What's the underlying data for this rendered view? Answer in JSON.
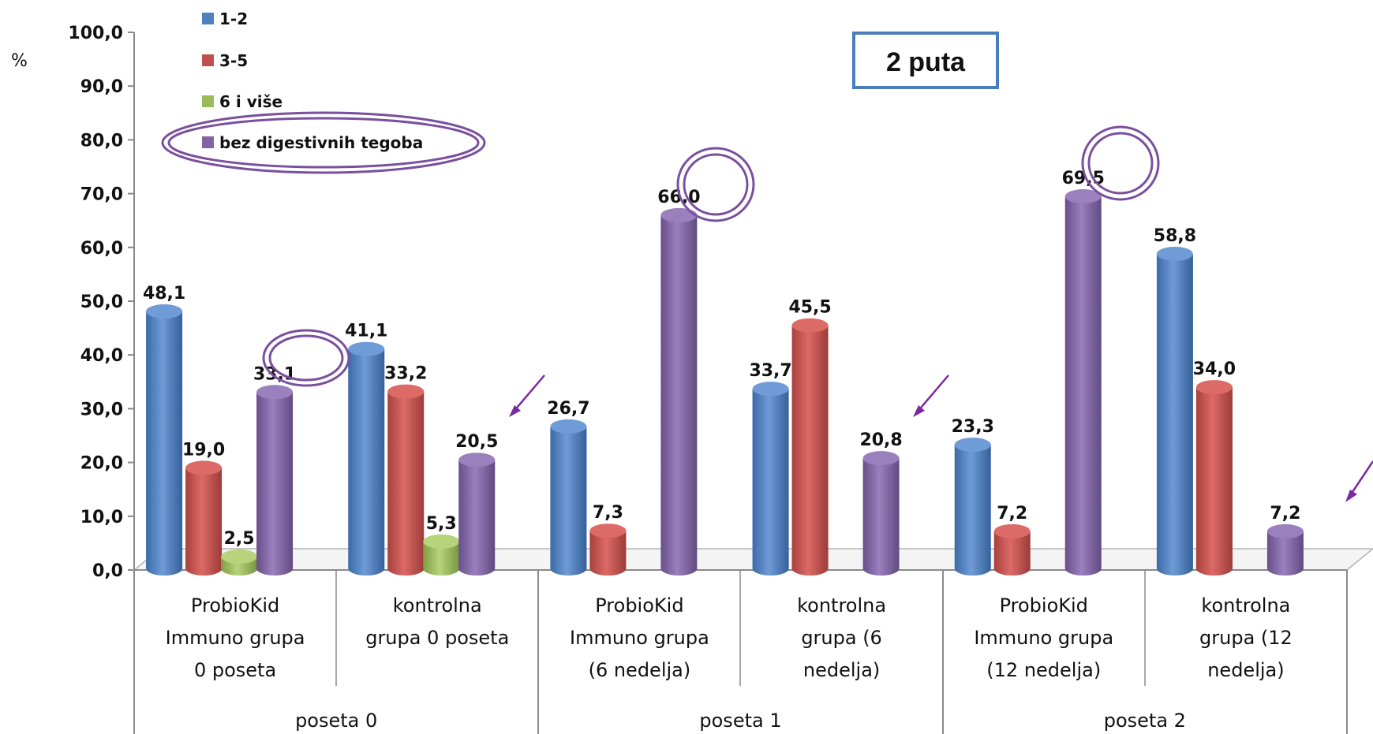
{
  "chart_data": {
    "type": "bar",
    "ylabel": "%",
    "ylim": [
      0,
      100
    ],
    "yticks": [
      "0,0",
      "10,0",
      "20,0",
      "30,0",
      "40,0",
      "50,0",
      "60,0",
      "70,0",
      "80,0",
      "90,0",
      "100,0"
    ],
    "annotation": "2 puta",
    "categories": [
      [
        "ProbioKid",
        "Immuno grupa",
        "0 poseta"
      ],
      [
        "kontrolna",
        "grupa 0 poseta"
      ],
      [
        "ProbioKid",
        "Immuno grupa",
        "(6 nedelja)"
      ],
      [
        "kontrolna",
        "grupa (6",
        "nedelja)"
      ],
      [
        "ProbioKid",
        "Immuno grupa",
        "(12 nedelja)"
      ],
      [
        "kontrolna",
        "grupa (12",
        "nedelja)"
      ]
    ],
    "groups": [
      "poseta 0",
      "poseta 1",
      "poseta 2"
    ],
    "series": [
      {
        "name": "1-2",
        "color": "#4F81BD",
        "values": [
          48.1,
          41.1,
          26.7,
          33.7,
          23.3,
          58.8
        ],
        "labels": [
          "48,1",
          "41,1",
          "26,7",
          "33,7",
          "23,3",
          "58,8"
        ]
      },
      {
        "name": "3-5",
        "color": "#C0504D",
        "values": [
          19.0,
          33.2,
          7.3,
          45.5,
          7.2,
          34.0
        ],
        "labels": [
          "19,0",
          "33,2",
          "7,3",
          "45,5",
          "7,2",
          "34,0"
        ]
      },
      {
        "name": "6 i više",
        "color": "#9BBB59",
        "values": [
          2.5,
          5.3,
          null,
          null,
          null,
          null
        ],
        "labels": [
          "2,5",
          "5,3",
          "",
          "",
          "",
          ""
        ]
      },
      {
        "name": "bez digestivnih tegoba",
        "color": "#8064A2",
        "values": [
          33.1,
          20.5,
          66.0,
          20.8,
          69.5,
          7.2
        ],
        "labels": [
          "33,1",
          "20,5",
          "66,0",
          "20,8",
          "69,5",
          "7,2"
        ]
      }
    ],
    "legend": "top-left",
    "grid": false
  }
}
